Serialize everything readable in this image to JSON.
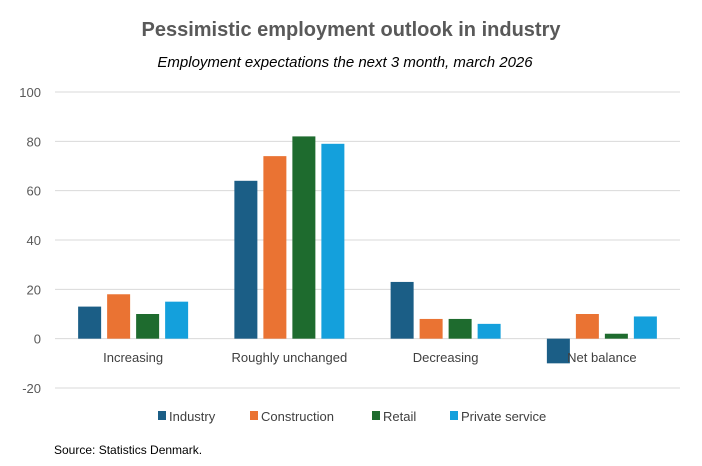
{
  "chart_data": {
    "type": "bar",
    "title": "Pessimistic employment outlook in industry",
    "subtitle": "Employment expectations the next 3 month, march 2026",
    "categories": [
      "Increasing",
      "Roughly unchanged",
      "Decreasing",
      "Net balance"
    ],
    "series": [
      {
        "name": "Industry",
        "color": "#1b5e86",
        "values": [
          13,
          64,
          23,
          -10
        ]
      },
      {
        "name": "Construction",
        "color": "#ea7333",
        "values": [
          18,
          74,
          8,
          10
        ]
      },
      {
        "name": "Retail",
        "color": "#1e6b2e",
        "values": [
          10,
          82,
          8,
          2
        ]
      },
      {
        "name": "Private service",
        "color": "#14a0dc",
        "values": [
          15,
          79,
          6,
          9
        ]
      }
    ],
    "ylim": [
      -20,
      100
    ],
    "yticks": [
      -20,
      0,
      20,
      40,
      60,
      80,
      100
    ],
    "grid": true,
    "legend_position": "bottom",
    "source": "Source: Statistics Denmark."
  }
}
